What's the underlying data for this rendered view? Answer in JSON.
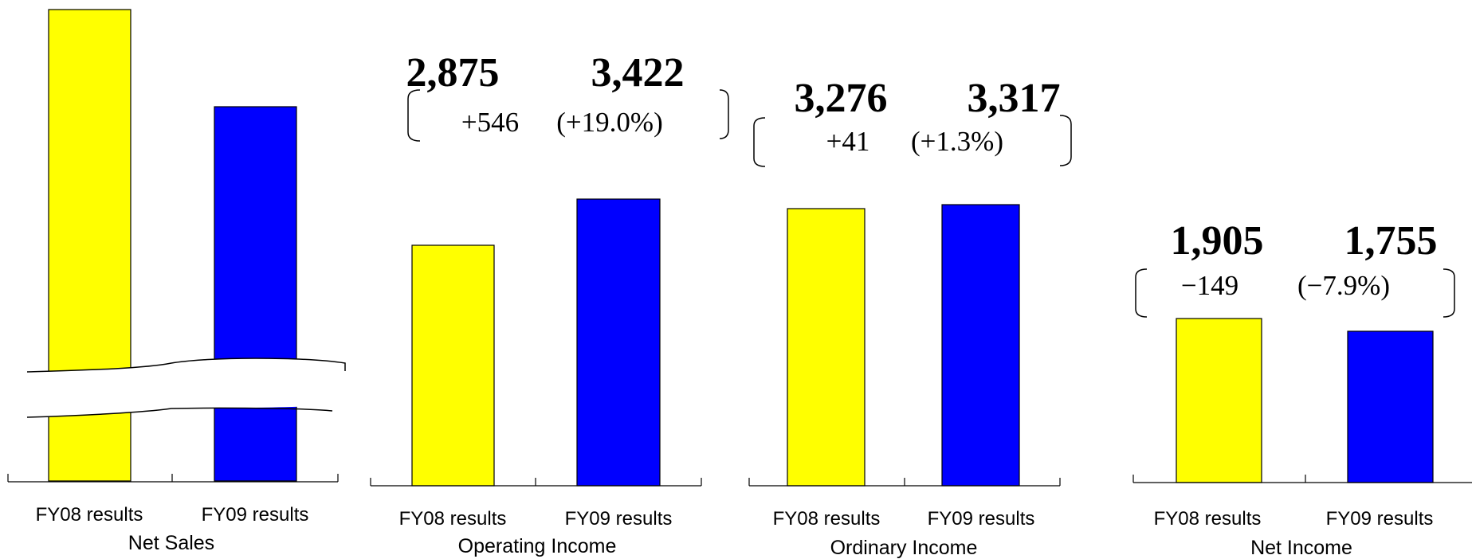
{
  "chart_data": [
    {
      "type": "bar",
      "title": "Net Sales",
      "categories": [
        "FY08 results",
        "FY09 results"
      ],
      "values": [
        null,
        null
      ],
      "axis_break": true,
      "colors": [
        "#ffff00",
        "#0000ff"
      ]
    },
    {
      "type": "bar",
      "title": "Operating Income",
      "categories": [
        "FY08 results",
        "FY09 results"
      ],
      "values": [
        2875,
        3422
      ],
      "value_labels": [
        "2,875",
        "3,422"
      ],
      "change_label": "+546",
      "change_pct_label": "(+19.0%)",
      "colors": [
        "#ffff00",
        "#0000ff"
      ]
    },
    {
      "type": "bar",
      "title": "Ordinary Income",
      "categories": [
        "FY08 results",
        "FY09 results"
      ],
      "values": [
        3276,
        3317
      ],
      "value_labels": [
        "3,276",
        "3,317"
      ],
      "change_label": "+41",
      "change_pct_label": "(+1.3%)",
      "colors": [
        "#ffff00",
        "#0000ff"
      ]
    },
    {
      "type": "bar",
      "title": "Net Income",
      "categories": [
        "FY08 results",
        "FY09 results"
      ],
      "values": [
        1905,
        1755
      ],
      "value_labels": [
        "1,905",
        "1,755"
      ],
      "change_label": "−149",
      "change_pct_label": "(−7.9%)",
      "colors": [
        "#ffff00",
        "#0000ff"
      ]
    }
  ]
}
